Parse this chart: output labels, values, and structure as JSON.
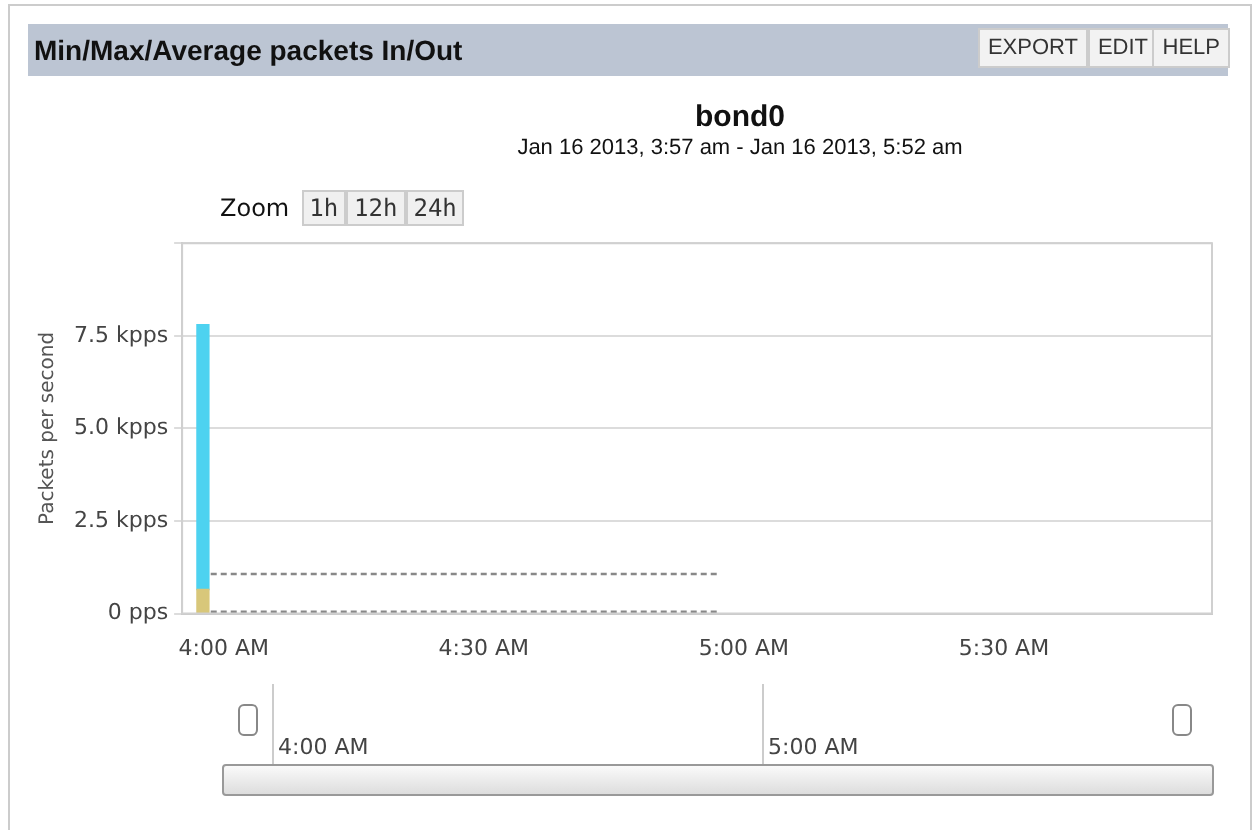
{
  "chart_data": {
    "type": "bar",
    "title": "Min/Max/Average packets In/Out",
    "subtitle": "bond0",
    "ylabel": "Packets per second",
    "annotations": [
      "Jan 16 2013, 3:57 am - Jan 16 2013, 5:52 am",
      "EXPORT",
      "EDIT",
      "HELP",
      "Zoom",
      "1h",
      "12h",
      "24h",
      "4:00 AM",
      "5:00 AM"
    ],
    "stacked": true,
    "xlim": [
      3.92,
      5.9
    ],
    "xticks": [
      {
        "value": 4,
        "label": "4:00 AM"
      },
      {
        "value": 4.5,
        "label": "4:30 AM"
      },
      {
        "value": 5,
        "label": "5:00 AM"
      },
      {
        "value": 5.5,
        "label": "5:30 AM"
      }
    ],
    "ylim": [
      0,
      10
    ],
    "yticks": [
      {
        "value": 0,
        "label": "0 pps"
      },
      {
        "value": 2.5,
        "label": "2.5 kpps"
      },
      {
        "value": 5,
        "label": "5.0 kpps"
      },
      {
        "value": 7.5,
        "label": "7.5 kpps"
      },
      {
        "value": 10,
        "label": null
      }
    ],
    "grid": "y",
    "legend": false,
    "series": [
      {
        "color": "#d8c77a",
        "x": [
          3.96
        ],
        "values": [
          0.65
        ]
      },
      {
        "color": "#4dd2f0",
        "x": [
          3.96
        ],
        "values": [
          7.15
        ]
      },
      {
        "type": "line",
        "color": "#888888",
        "line_style": "dashed",
        "marker": "none",
        "x": [
          3.975,
          4.95
        ],
        "values": [
          1.07,
          1.07
        ]
      },
      {
        "type": "line",
        "color": "#888888",
        "line_style": "dashed",
        "marker": "none",
        "x": [
          3.975,
          4.95
        ],
        "values": [
          0.05,
          0.05
        ]
      }
    ]
  }
}
